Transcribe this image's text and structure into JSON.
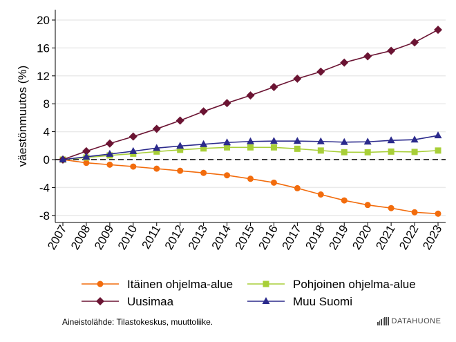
{
  "chart_data": {
    "type": "line",
    "title": "",
    "xlabel": "",
    "ylabel": "väestönmuutos (%)",
    "ylim": [
      -9,
      20.5
    ],
    "yticks": [
      20,
      16,
      12,
      8,
      4,
      0,
      -4,
      -8
    ],
    "x": [
      2007,
      2008,
      2009,
      2010,
      2011,
      2012,
      2013,
      2014,
      2015,
      2016,
      2017,
      2018,
      2019,
      2020,
      2021,
      2022,
      2023
    ],
    "grid": true,
    "reference_line": {
      "y": 0,
      "style": "dashed",
      "color": "#000000"
    },
    "legend_placement": "bottom",
    "series": [
      {
        "name": "Itäinen ohjelma-alue",
        "color": "#f26c0d",
        "marker": "circle",
        "values": [
          0,
          -0.46,
          -0.73,
          -1.0,
          -1.3,
          -1.6,
          -1.9,
          -2.25,
          -2.75,
          -3.3,
          -4.1,
          -5.0,
          -5.85,
          -6.5,
          -6.95,
          -7.55,
          -7.75
        ]
      },
      {
        "name": "Pohjoinen ohjelma-alue",
        "color": "#a8cf38",
        "marker": "square",
        "values": [
          0,
          0.3,
          0.6,
          0.85,
          1.15,
          1.4,
          1.6,
          1.75,
          1.75,
          1.75,
          1.55,
          1.3,
          1.06,
          1.05,
          1.15,
          1.1,
          1.3
        ]
      },
      {
        "name": "Uusimaa",
        "color": "#6b1433",
        "marker": "diamond",
        "values": [
          0,
          1.2,
          2.3,
          3.3,
          4.4,
          5.6,
          6.9,
          8.1,
          9.2,
          10.4,
          11.6,
          12.6,
          13.9,
          14.8,
          15.6,
          16.8,
          18.6
        ]
      },
      {
        "name": "Muu Suomi",
        "color": "#2b2a8c",
        "marker": "triangle",
        "values": [
          0,
          0.4,
          0.8,
          1.2,
          1.65,
          1.95,
          2.2,
          2.45,
          2.6,
          2.65,
          2.65,
          2.6,
          2.5,
          2.55,
          2.75,
          2.85,
          3.45
        ]
      }
    ]
  },
  "source": "Aineistolähde: Tilastokeskus, muuttoliike.",
  "logo": "DATAHUONE"
}
